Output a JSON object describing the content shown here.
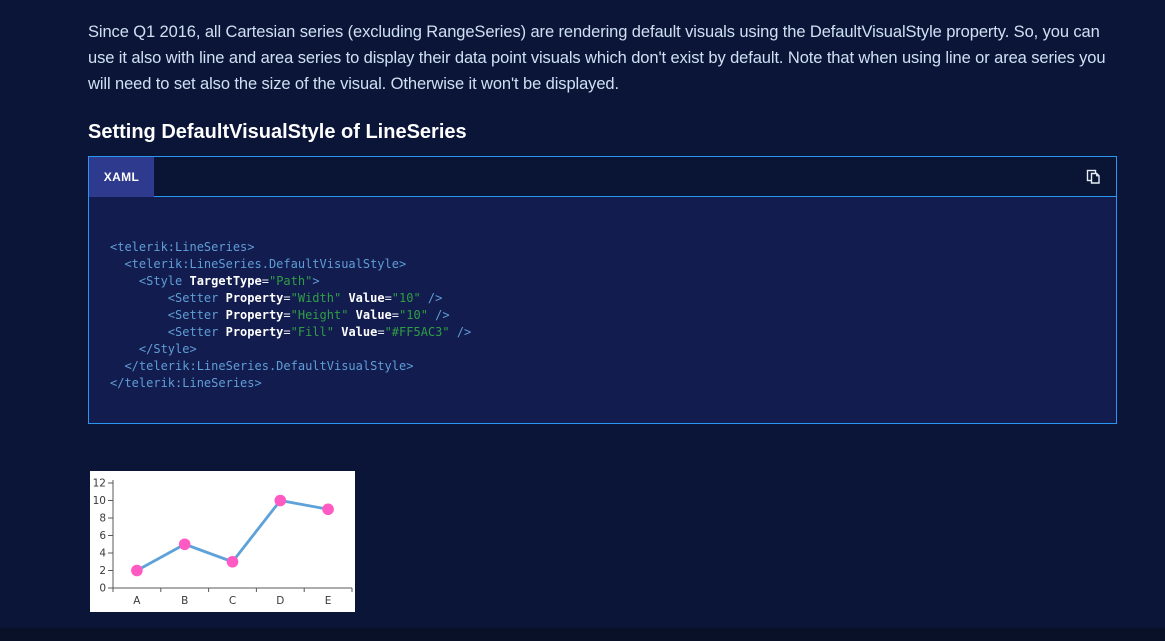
{
  "page": {
    "intro_paragraph": "Since Q1 2016, all Cartesian series (excluding RangeSeries) are rendering default visuals using the DefaultVisualStyle property. So, you can use it also with line and area series to display their data point visuals which don't exist by default. Note that when using line or area series you will need to set also the size of the visual. Otherwise it won't be displayed.",
    "section_heading": "Setting DefaultVisualStyle of LineSeries"
  },
  "code_block": {
    "tab_label": "XAML",
    "copy_icon": "copy-icon",
    "syntax_colors": {
      "tag": "#5f9ed6",
      "attr": "#ffffff",
      "eq": "#e8eef7",
      "val": "#2f9e43",
      "plain": "#e8eef7"
    },
    "lines": [
      [
        [
          "tag",
          "<telerik:LineSeries>"
        ]
      ],
      [
        [
          "tag",
          "  <telerik:LineSeries.DefaultVisualStyle>"
        ]
      ],
      [
        [
          "tag",
          "    <Style "
        ],
        [
          "attr",
          "TargetType"
        ],
        [
          "eq",
          "="
        ],
        [
          "val",
          "\"Path\""
        ],
        [
          "tag",
          ">"
        ]
      ],
      [
        [
          "tag",
          "        <Setter "
        ],
        [
          "attr",
          "Property"
        ],
        [
          "eq",
          "="
        ],
        [
          "val",
          "\"Width\""
        ],
        [
          "plain",
          " "
        ],
        [
          "attr",
          "Value"
        ],
        [
          "eq",
          "="
        ],
        [
          "val",
          "\"10\""
        ],
        [
          "tag",
          " />"
        ]
      ],
      [
        [
          "tag",
          "        <Setter "
        ],
        [
          "attr",
          "Property"
        ],
        [
          "eq",
          "="
        ],
        [
          "val",
          "\"Height\""
        ],
        [
          "plain",
          " "
        ],
        [
          "attr",
          "Value"
        ],
        [
          "eq",
          "="
        ],
        [
          "val",
          "\"10\""
        ],
        [
          "tag",
          " />"
        ]
      ],
      [
        [
          "tag",
          "        <Setter "
        ],
        [
          "attr",
          "Property"
        ],
        [
          "eq",
          "="
        ],
        [
          "val",
          "\"Fill\""
        ],
        [
          "plain",
          " "
        ],
        [
          "attr",
          "Value"
        ],
        [
          "eq",
          "="
        ],
        [
          "val",
          "\"#FF5AC3\""
        ],
        [
          "tag",
          " />"
        ]
      ],
      [
        [
          "tag",
          "    </Style>"
        ]
      ],
      [
        [
          "tag",
          "  </telerik:LineSeries.DefaultVisualStyle>"
        ]
      ],
      [
        [
          "tag",
          "</telerik:LineSeries>"
        ]
      ]
    ]
  },
  "chart_data": {
    "type": "line",
    "categories": [
      "A",
      "B",
      "C",
      "D",
      "E"
    ],
    "values": [
      2,
      5,
      3,
      10,
      9
    ],
    "title": "",
    "xlabel": "",
    "ylabel": "",
    "ylim": [
      0,
      12
    ],
    "yticks": [
      0,
      2,
      4,
      6,
      8,
      10,
      12
    ],
    "grid": false,
    "legend": false,
    "line_color": "#5ea2d9",
    "marker_color": "#FF5AC3",
    "axis_color": "#595959",
    "label_color": "#3a3a3a",
    "background": "#ffffff"
  }
}
